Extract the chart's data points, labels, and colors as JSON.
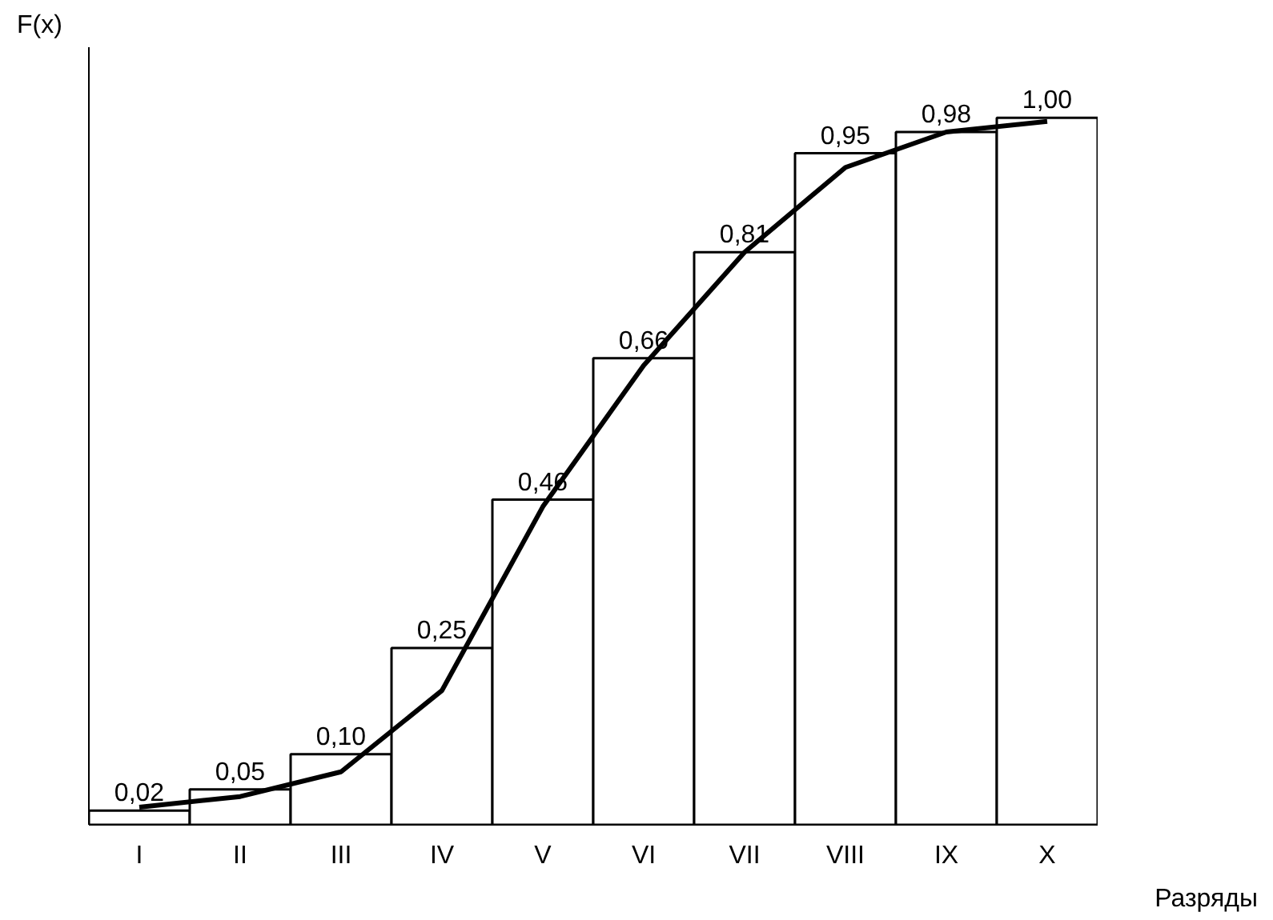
{
  "chart_data": {
    "type": "bar",
    "xlabel": "Разряды",
    "ylabel": "F(x)",
    "categories": [
      "I",
      "II",
      "III",
      "IV",
      "V",
      "VI",
      "VII",
      "VIII",
      "IX",
      "X"
    ],
    "ylim": [
      0,
      1.1
    ],
    "series": [
      {
        "color": "#ffffff",
        "values": [
          0.02,
          0.05,
          0.1,
          0.25,
          0.46,
          0.66,
          0.81,
          0.95,
          0.98,
          1.0
        ],
        "value_labels": [
          "0,02",
          "0,05",
          "0,10",
          "0,25",
          "0,46",
          "0,66",
          "0,81",
          "0,95",
          "0,98",
          "1,00"
        ]
      },
      {
        "type": "line",
        "color": "#000000",
        "values": [
          0.025,
          0.04,
          0.075,
          0.19,
          0.45,
          0.65,
          0.81,
          0.93,
          0.98,
          0.995
        ]
      }
    ],
    "grid": false
  }
}
